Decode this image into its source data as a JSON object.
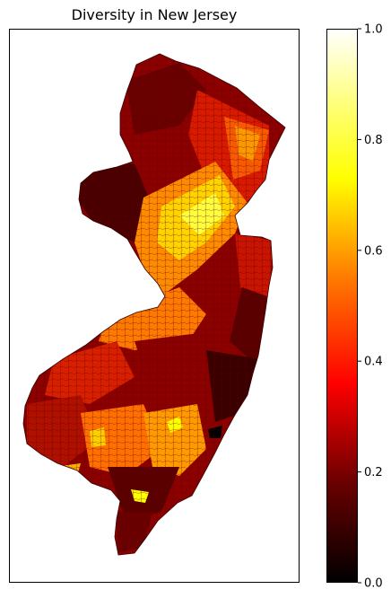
{
  "title": "Diversity in New Jersey",
  "colorbar": {
    "colormap": "hot",
    "min": 0.0,
    "max": 1.0,
    "ticks": [
      "0.0",
      "0.2",
      "0.4",
      "0.6",
      "0.8",
      "1.0"
    ]
  },
  "colors": {
    "black": "#000000",
    "dark_red": "#8c0000",
    "red": "#ff1a00",
    "orange": "#ff8c00",
    "yellow": "#ffff00",
    "white": "#ffffff"
  }
}
